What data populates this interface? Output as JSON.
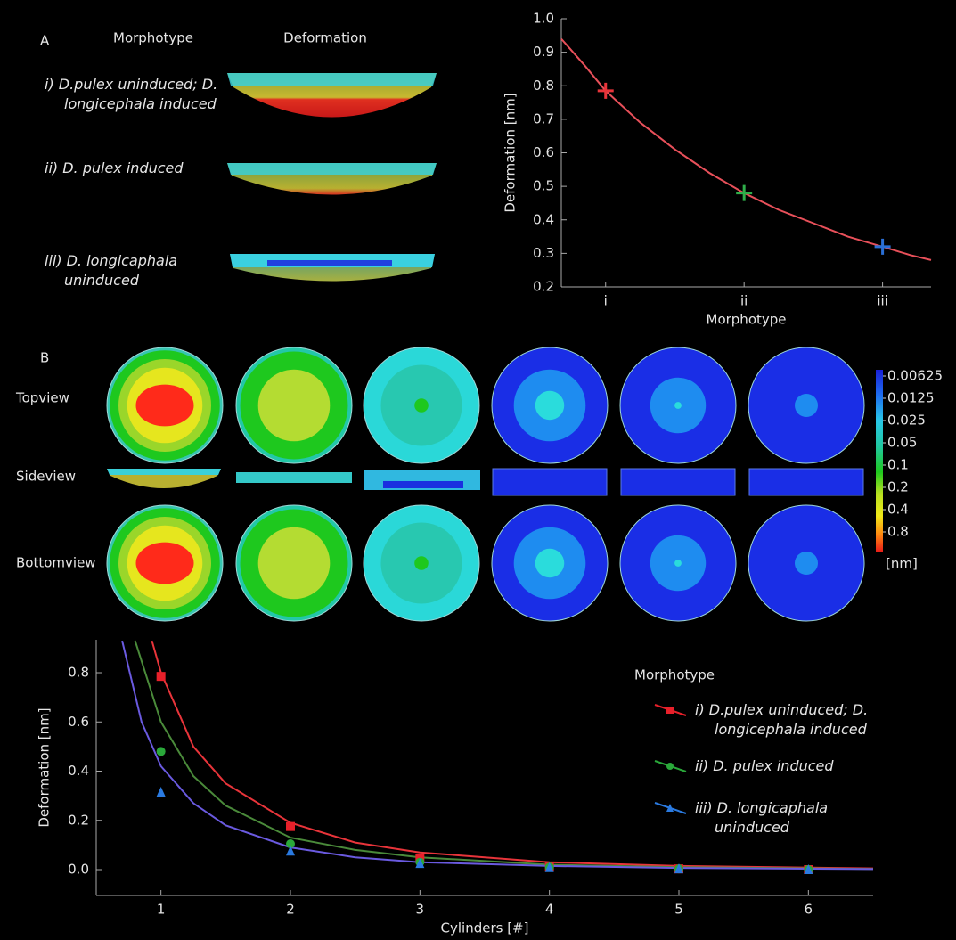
{
  "panel_a": {
    "label": "A",
    "column_headers": [
      "Morphotype",
      "Deformation"
    ],
    "rows": [
      "i) D.pulex uninduced; D. longicephala induced",
      "ii) D. pulex induced",
      "iii) D. longicaphala uninduced"
    ]
  },
  "panel_b": {
    "label": "B",
    "views": [
      "Topview",
      "Sideview",
      "Bottomview"
    ],
    "colorbar": {
      "ticks": [
        0.00625,
        0.0125,
        0.025,
        0.05,
        0.1,
        0.2,
        0.4,
        0.8
      ],
      "unit": "[nm]"
    }
  },
  "chart_data": [
    {
      "type": "line",
      "xlabel": "Morphotype",
      "ylabel": "Deformation [nm]",
      "xlim": [
        0.68,
        3.35
      ],
      "ylim": [
        0.2,
        1.0
      ],
      "xticks": [
        {
          "value": 1,
          "label": "i"
        },
        {
          "value": 2,
          "label": "ii"
        },
        {
          "value": 3,
          "label": "iii"
        }
      ],
      "yticks": [
        0.2,
        0.3,
        0.4,
        0.5,
        0.6,
        0.7,
        0.8,
        0.9,
        {
          "value": 1,
          "label": "1.0"
        }
      ],
      "fits": [
        {
          "color": "#e8505a",
          "x": [
            0.68,
            0.85,
            1,
            1.25,
            1.5,
            1.75,
            2,
            2.25,
            2.5,
            2.75,
            3,
            3.2,
            3.35
          ],
          "values": [
            0.94,
            0.86,
            0.785,
            0.69,
            0.61,
            0.54,
            0.48,
            0.43,
            0.39,
            0.35,
            0.32,
            0.295,
            0.28
          ]
        }
      ],
      "series": [
        {
          "color": "#e8343a",
          "marker": "cross",
          "x": [
            1
          ],
          "values": [
            0.785
          ]
        },
        {
          "color": "#2fae4a",
          "marker": "cross",
          "x": [
            2
          ],
          "values": [
            0.48
          ]
        },
        {
          "color": "#2a6fd6",
          "marker": "cross",
          "x": [
            3
          ],
          "values": [
            0.32
          ]
        }
      ]
    },
    {
      "type": "line",
      "xlabel": "Cylinders [#]",
      "ylabel": "Deformation [nm]",
      "xlim": [
        0.5,
        6.5
      ],
      "ylim": [
        -0.105,
        0.934
      ],
      "xticks": [
        1,
        2,
        3,
        4,
        5,
        6
      ],
      "yticks": [
        {
          "value": 0,
          "label": "0.0"
        },
        0.2,
        0.4,
        0.6,
        0.8
      ],
      "legend_title": "Morphotype",
      "legend": "right",
      "fits": [
        {
          "color": "#e8343a",
          "x": [
            0.93,
            1,
            1.25,
            1.5,
            2,
            2.5,
            3,
            4,
            5,
            6.5
          ],
          "values": [
            0.93,
            0.8,
            0.5,
            0.35,
            0.19,
            0.11,
            0.07,
            0.03,
            0.015,
            0.005
          ]
        },
        {
          "color": "#4a8a3a",
          "x": [
            0.8,
            1,
            1.25,
            1.5,
            2,
            2.5,
            3,
            4,
            5,
            6.5
          ],
          "values": [
            0.93,
            0.6,
            0.38,
            0.26,
            0.13,
            0.08,
            0.05,
            0.02,
            0.01,
            0.003
          ]
        },
        {
          "color": "#6a5ae0",
          "x": [
            0.7,
            0.85,
            1,
            1.25,
            1.5,
            2,
            2.5,
            3,
            4,
            5,
            6.5
          ],
          "values": [
            0.93,
            0.6,
            0.42,
            0.27,
            0.18,
            0.09,
            0.05,
            0.03,
            0.015,
            0.007,
            0.002
          ]
        }
      ],
      "series": [
        {
          "name": "i) D.pulex uninduced; D. longicephala induced",
          "color": "#e8202a",
          "marker": "square",
          "x": [
            1,
            2,
            3,
            4,
            5,
            6
          ],
          "values": [
            0.785,
            0.175,
            0.045,
            0.01,
            0.003,
            0.0
          ]
        },
        {
          "name": "ii) D. pulex induced",
          "color": "#2aa83a",
          "marker": "circle",
          "x": [
            1,
            2,
            3,
            4,
            5,
            6
          ],
          "values": [
            0.48,
            0.105,
            0.03,
            0.01,
            0.003,
            0.0
          ]
        },
        {
          "name": "iii) D. longicaphala uninduced",
          "color": "#2a7ae0",
          "marker": "triangle",
          "x": [
            1,
            2,
            3,
            4,
            5,
            6
          ],
          "values": [
            0.315,
            0.075,
            0.025,
            0.008,
            0.003,
            0.0
          ]
        }
      ]
    }
  ]
}
